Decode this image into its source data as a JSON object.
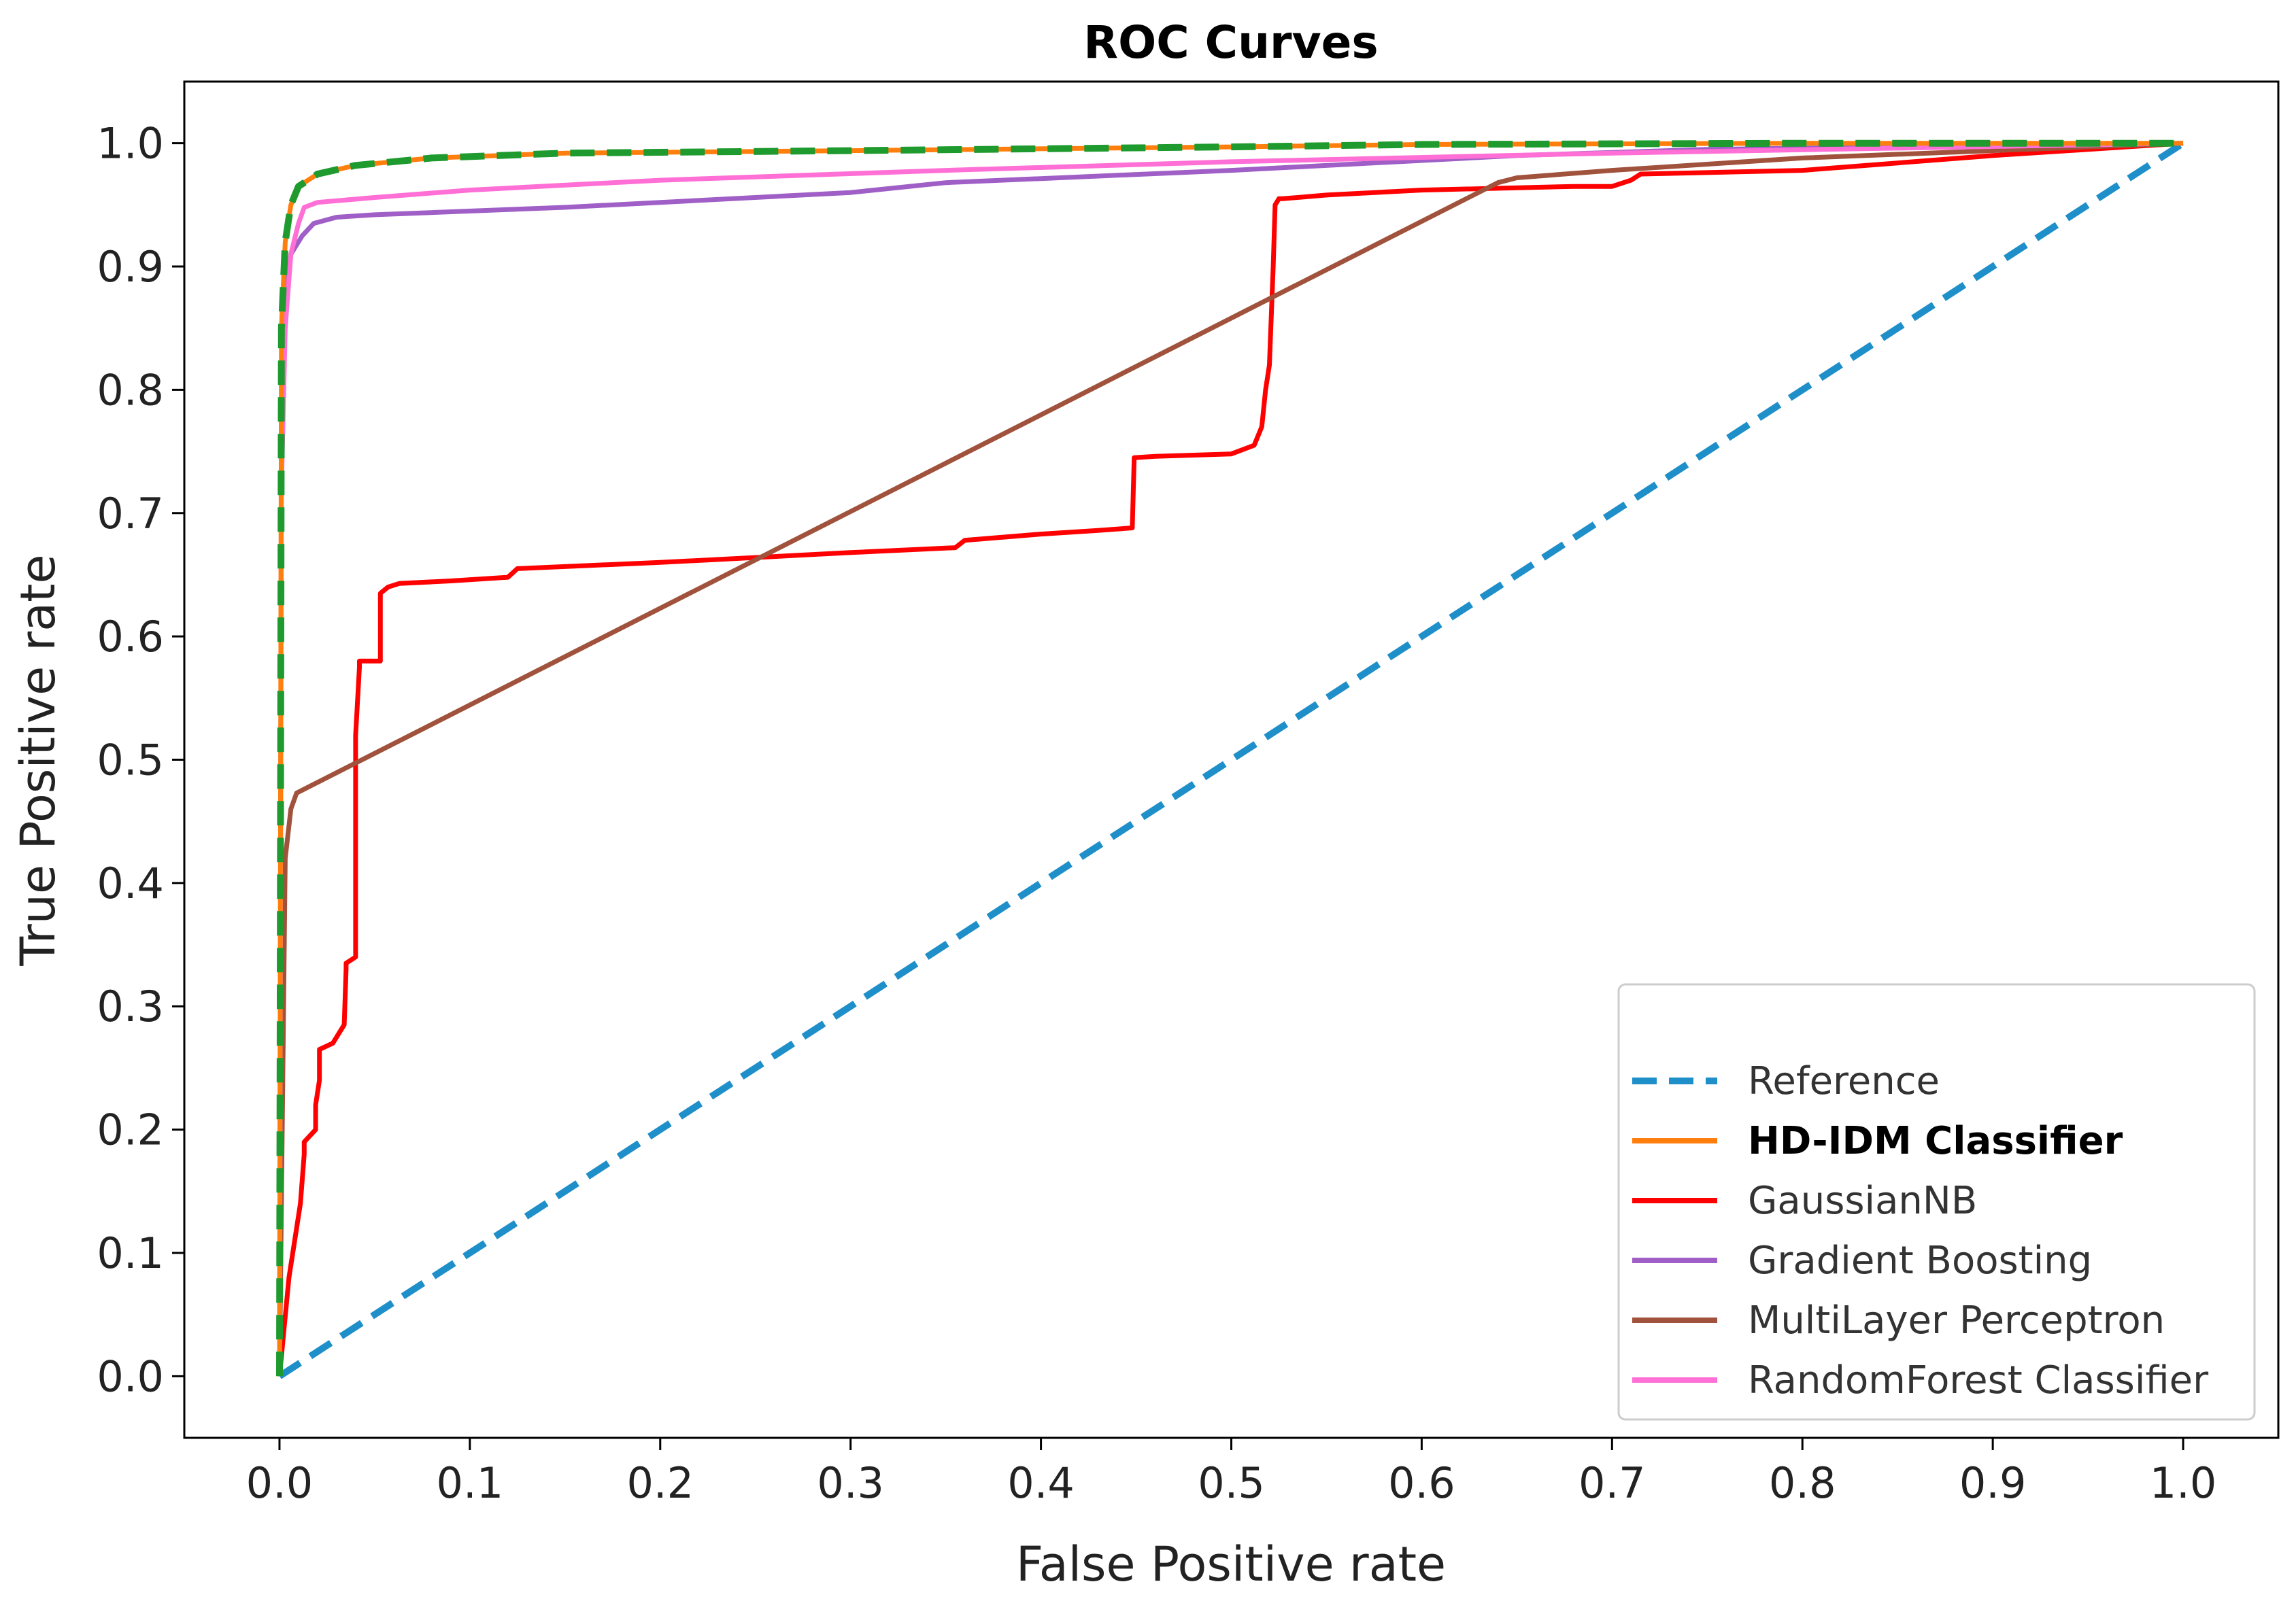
{
  "chart_data": {
    "type": "line",
    "title": "ROC Curves",
    "xlabel": "False Positive rate",
    "ylabel": "True Positive rate",
    "xlim": [
      -0.05,
      1.05
    ],
    "ylim": [
      -0.05,
      1.05
    ],
    "xticks": [
      "0.0",
      "0.1",
      "0.2",
      "0.3",
      "0.4",
      "0.5",
      "0.6",
      "0.7",
      "0.8",
      "0.9",
      "1.0"
    ],
    "yticks": [
      "0.0",
      "0.1",
      "0.2",
      "0.3",
      "0.4",
      "0.5",
      "0.6",
      "0.7",
      "0.8",
      "0.9",
      "1.0"
    ],
    "legend_position": "lower-right",
    "series": [
      {
        "name": "Reference",
        "color": "#1f8fc9",
        "dash": "dashed",
        "bold": false,
        "x": [
          0,
          1
        ],
        "y": [
          0,
          1
        ]
      },
      {
        "name": "HD-IDM Classifier",
        "color": "#ff7f0e",
        "dash": "solid",
        "bold": true,
        "x": [
          0,
          0.001,
          0.003,
          0.006,
          0.01,
          0.02,
          0.04,
          0.08,
          0.15,
          0.3,
          0.5,
          0.6,
          0.8,
          1.0
        ],
        "y": [
          0,
          0.85,
          0.92,
          0.95,
          0.965,
          0.975,
          0.982,
          0.988,
          0.992,
          0.994,
          0.997,
          0.999,
          1.0,
          1.0
        ]
      },
      {
        "name": "GaussianNB",
        "color": "#ff0000",
        "dash": "solid",
        "bold": false,
        "x": [
          0,
          0.005,
          0.011,
          0.013,
          0.013,
          0.019,
          0.019,
          0.021,
          0.021,
          0.028,
          0.034,
          0.035,
          0.035,
          0.04,
          0.04,
          0.042,
          0.042,
          0.053,
          0.053,
          0.057,
          0.063,
          0.09,
          0.12,
          0.125,
          0.2,
          0.3,
          0.355,
          0.36,
          0.4,
          0.43,
          0.448,
          0.449,
          0.46,
          0.5,
          0.512,
          0.516,
          0.518,
          0.52,
          0.522,
          0.523,
          0.525,
          0.527,
          0.55,
          0.6,
          0.68,
          0.7,
          0.71,
          0.715,
          0.8,
          0.85,
          0.9,
          0.95,
          1.0
        ],
        "y": [
          0,
          0.08,
          0.14,
          0.18,
          0.19,
          0.2,
          0.22,
          0.24,
          0.265,
          0.27,
          0.285,
          0.33,
          0.335,
          0.34,
          0.52,
          0.575,
          0.58,
          0.58,
          0.635,
          0.64,
          0.643,
          0.645,
          0.648,
          0.655,
          0.66,
          0.668,
          0.672,
          0.678,
          0.683,
          0.686,
          0.688,
          0.745,
          0.746,
          0.748,
          0.755,
          0.77,
          0.8,
          0.82,
          0.9,
          0.95,
          0.955,
          0.955,
          0.958,
          0.962,
          0.965,
          0.965,
          0.97,
          0.975,
          0.978,
          0.984,
          0.99,
          0.995,
          1.0
        ]
      },
      {
        "name": "Gradient Boosting",
        "color": "#9f5fc6",
        "dash": "solid",
        "bold": false,
        "x": [
          0,
          0.001,
          0.003,
          0.006,
          0.008,
          0.012,
          0.018,
          0.03,
          0.05,
          0.15,
          0.3,
          0.35,
          0.5,
          0.65,
          0.75,
          1.0
        ],
        "y": [
          0,
          0.78,
          0.87,
          0.91,
          0.915,
          0.925,
          0.935,
          0.94,
          0.942,
          0.948,
          0.96,
          0.968,
          0.978,
          0.99,
          0.995,
          1.0
        ]
      },
      {
        "name": "MultiLayer Perceptron",
        "color": "#a0523c",
        "dash": "solid",
        "bold": false,
        "x": [
          0,
          0.003,
          0.006,
          0.009,
          0.64,
          0.65,
          0.7,
          0.8,
          1.0
        ],
        "y": [
          0,
          0.42,
          0.46,
          0.473,
          0.968,
          0.972,
          0.978,
          0.988,
          1.0
        ]
      },
      {
        "name": "RandomForest Classifier",
        "color": "#ff6fd5",
        "dash": "solid",
        "bold": false,
        "x": [
          0,
          0.001,
          0.003,
          0.006,
          0.01,
          0.013,
          0.02,
          0.05,
          0.1,
          0.2,
          0.35,
          0.5,
          0.7,
          0.85,
          1.0
        ],
        "y": [
          0,
          0.72,
          0.85,
          0.91,
          0.935,
          0.948,
          0.952,
          0.956,
          0.962,
          0.97,
          0.978,
          0.985,
          0.992,
          0.996,
          1.0
        ]
      },
      {
        "name": "HD-IDM (dashed overlay)",
        "in_legend": false,
        "color": "#1e9a2e",
        "dash": "dashed",
        "bold": false,
        "x": [
          0,
          0.001,
          0.003,
          0.006,
          0.01,
          0.02,
          0.04,
          0.08,
          0.15,
          0.3,
          0.5,
          0.6,
          0.8,
          1.0
        ],
        "y": [
          0,
          0.85,
          0.92,
          0.95,
          0.965,
          0.975,
          0.982,
          0.988,
          0.992,
          0.994,
          0.997,
          0.999,
          1.0,
          1.0
        ]
      }
    ]
  }
}
